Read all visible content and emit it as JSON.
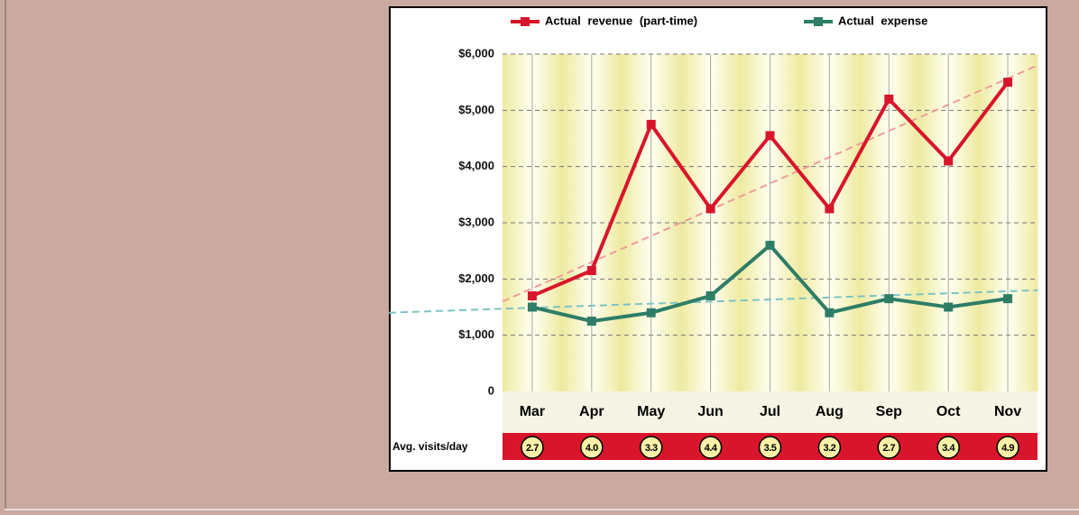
{
  "chart_data": {
    "type": "line",
    "categories": [
      "Mar",
      "Apr",
      "May",
      "Jun",
      "Jul",
      "Aug",
      "Sep",
      "Oct",
      "Nov"
    ],
    "series": [
      {
        "name": "Actual revenue (part-time)",
        "color": "#d8152b",
        "values": [
          1700,
          2150,
          4750,
          3250,
          4550,
          3250,
          5200,
          4100,
          5500
        ]
      },
      {
        "name": "Actual expense",
        "color": "#2e7d67",
        "values": [
          1500,
          1250,
          1400,
          1700,
          2600,
          1400,
          1650,
          1500,
          1650
        ]
      }
    ],
    "trend_lines": [
      {
        "color": "#f09a9a",
        "values": [
          1600,
          5800
        ]
      },
      {
        "color": "#7cc4c4",
        "values": [
          1400,
          1800
        ]
      }
    ],
    "ylim": [
      0,
      6000
    ],
    "yticks": [
      0,
      {
        "value": 1000,
        "label": "$1,000"
      },
      {
        "value": 2000,
        "label": "$2,000"
      },
      {
        "value": 3000,
        "label": "$3,000"
      },
      {
        "value": 4000,
        "label": "$4,000"
      },
      {
        "value": 5000,
        "label": "$5,000"
      },
      {
        "value": 6000,
        "label": "$6,000"
      }
    ],
    "grid": true,
    "visits": {
      "label": "Avg. visits/day",
      "values": [
        2.7,
        4.0,
        3.3,
        4.4,
        3.5,
        3.2,
        2.7,
        3.4,
        4.9
      ],
      "value_labels": [
        "2.7",
        "4.0",
        "3.3",
        "4.4",
        "3.5",
        "3.2",
        "2.7",
        "3.4",
        "4.9"
      ]
    }
  }
}
